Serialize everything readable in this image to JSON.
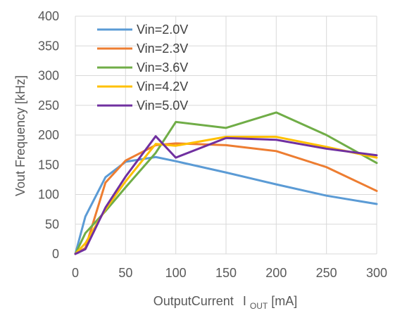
{
  "chart_data": {
    "type": "line",
    "title": "",
    "xlabel": "OutputCurrent",
    "xlabel_symbol": "I",
    "xlabel_subscript": "OUT",
    "xlabel_unit": "[mA]",
    "ylabel": "Vout Frequency [kHz]",
    "xlim": [
      0,
      300
    ],
    "ylim": [
      0,
      400
    ],
    "xticks": [
      0,
      50,
      100,
      150,
      200,
      250,
      300
    ],
    "yticks": [
      0,
      50,
      100,
      150,
      200,
      250,
      300,
      350,
      400
    ],
    "grid": true,
    "legend_position": "top-left",
    "series": [
      {
        "name": "Vin=2.0V",
        "color": "#5b9bd5",
        "x": [
          0,
          10,
          30,
          50,
          80,
          100,
          150,
          200,
          250,
          300
        ],
        "y": [
          0,
          63,
          129,
          155,
          163,
          156,
          137,
          117,
          98,
          84
        ]
      },
      {
        "name": "Vin=2.3V",
        "color": "#ed7d31",
        "x": [
          0,
          10,
          30,
          50,
          80,
          100,
          150,
          200,
          250,
          300
        ],
        "y": [
          0,
          10,
          120,
          157,
          183,
          186,
          183,
          173,
          146,
          106
        ]
      },
      {
        "name": "Vin=3.6V",
        "color": "#70ad47",
        "x": [
          0,
          10,
          30,
          50,
          80,
          100,
          150,
          200,
          250,
          300
        ],
        "y": [
          0,
          35,
          72,
          112,
          170,
          222,
          212,
          238,
          200,
          153
        ]
      },
      {
        "name": "Vin=4.2V",
        "color": "#ffc000",
        "x": [
          0,
          10,
          30,
          50,
          80,
          100,
          150,
          200,
          250,
          300
        ],
        "y": [
          0,
          18,
          75,
          122,
          185,
          182,
          197,
          197,
          180,
          162
        ]
      },
      {
        "name": "Vin=5.0V",
        "color": "#7030a0",
        "x": [
          0,
          10,
          30,
          50,
          80,
          100,
          150,
          200,
          250,
          300
        ],
        "y": [
          0,
          8,
          78,
          130,
          198,
          162,
          195,
          192,
          177,
          166
        ]
      }
    ]
  }
}
